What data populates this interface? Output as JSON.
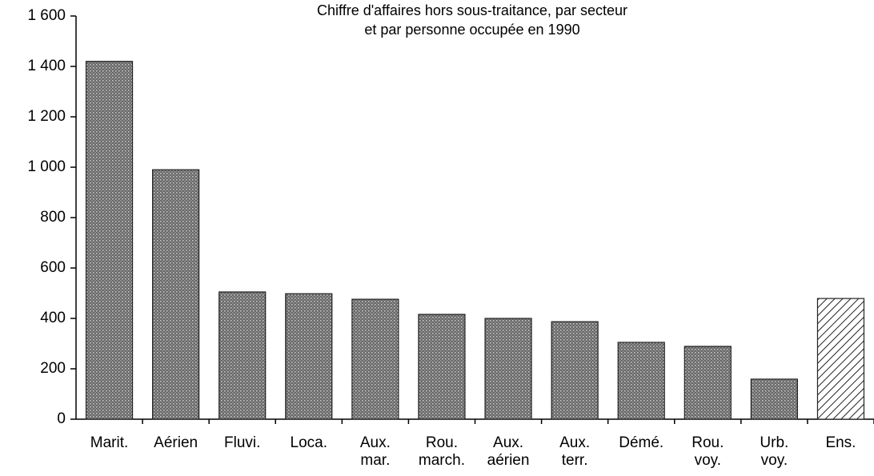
{
  "chart_data": {
    "type": "bar",
    "title": [
      "Chiffre d'affaires hors sous-traitance, par secteur",
      "et par personne occupée en 1990"
    ],
    "categories": [
      "Marit.",
      "Aérien",
      "Fluvi.",
      "Loca.",
      "Aux. mar.",
      "Rou. march.",
      "Aux. aérien",
      "Aux. terr.",
      "Démé.",
      "Rou. voy.",
      "Urb. voy.",
      "Ens."
    ],
    "values": [
      1420,
      990,
      505,
      498,
      476,
      416,
      400,
      387,
      305,
      289,
      159,
      479
    ],
    "patterns": [
      "dots",
      "dots",
      "dots",
      "dots",
      "dots",
      "dots",
      "dots",
      "dots",
      "dots",
      "dots",
      "dots",
      "hatch"
    ],
    "color": "#4a4a4a",
    "ylim": [
      0,
      1600
    ],
    "yticks": [
      0,
      200,
      400,
      600,
      800,
      {
        "value": 1000,
        "label": "1 000"
      },
      {
        "value": 1200,
        "label": "1 200"
      },
      {
        "value": 1400,
        "label": "1 400"
      },
      {
        "value": 1600,
        "label": "1 600"
      }
    ]
  }
}
